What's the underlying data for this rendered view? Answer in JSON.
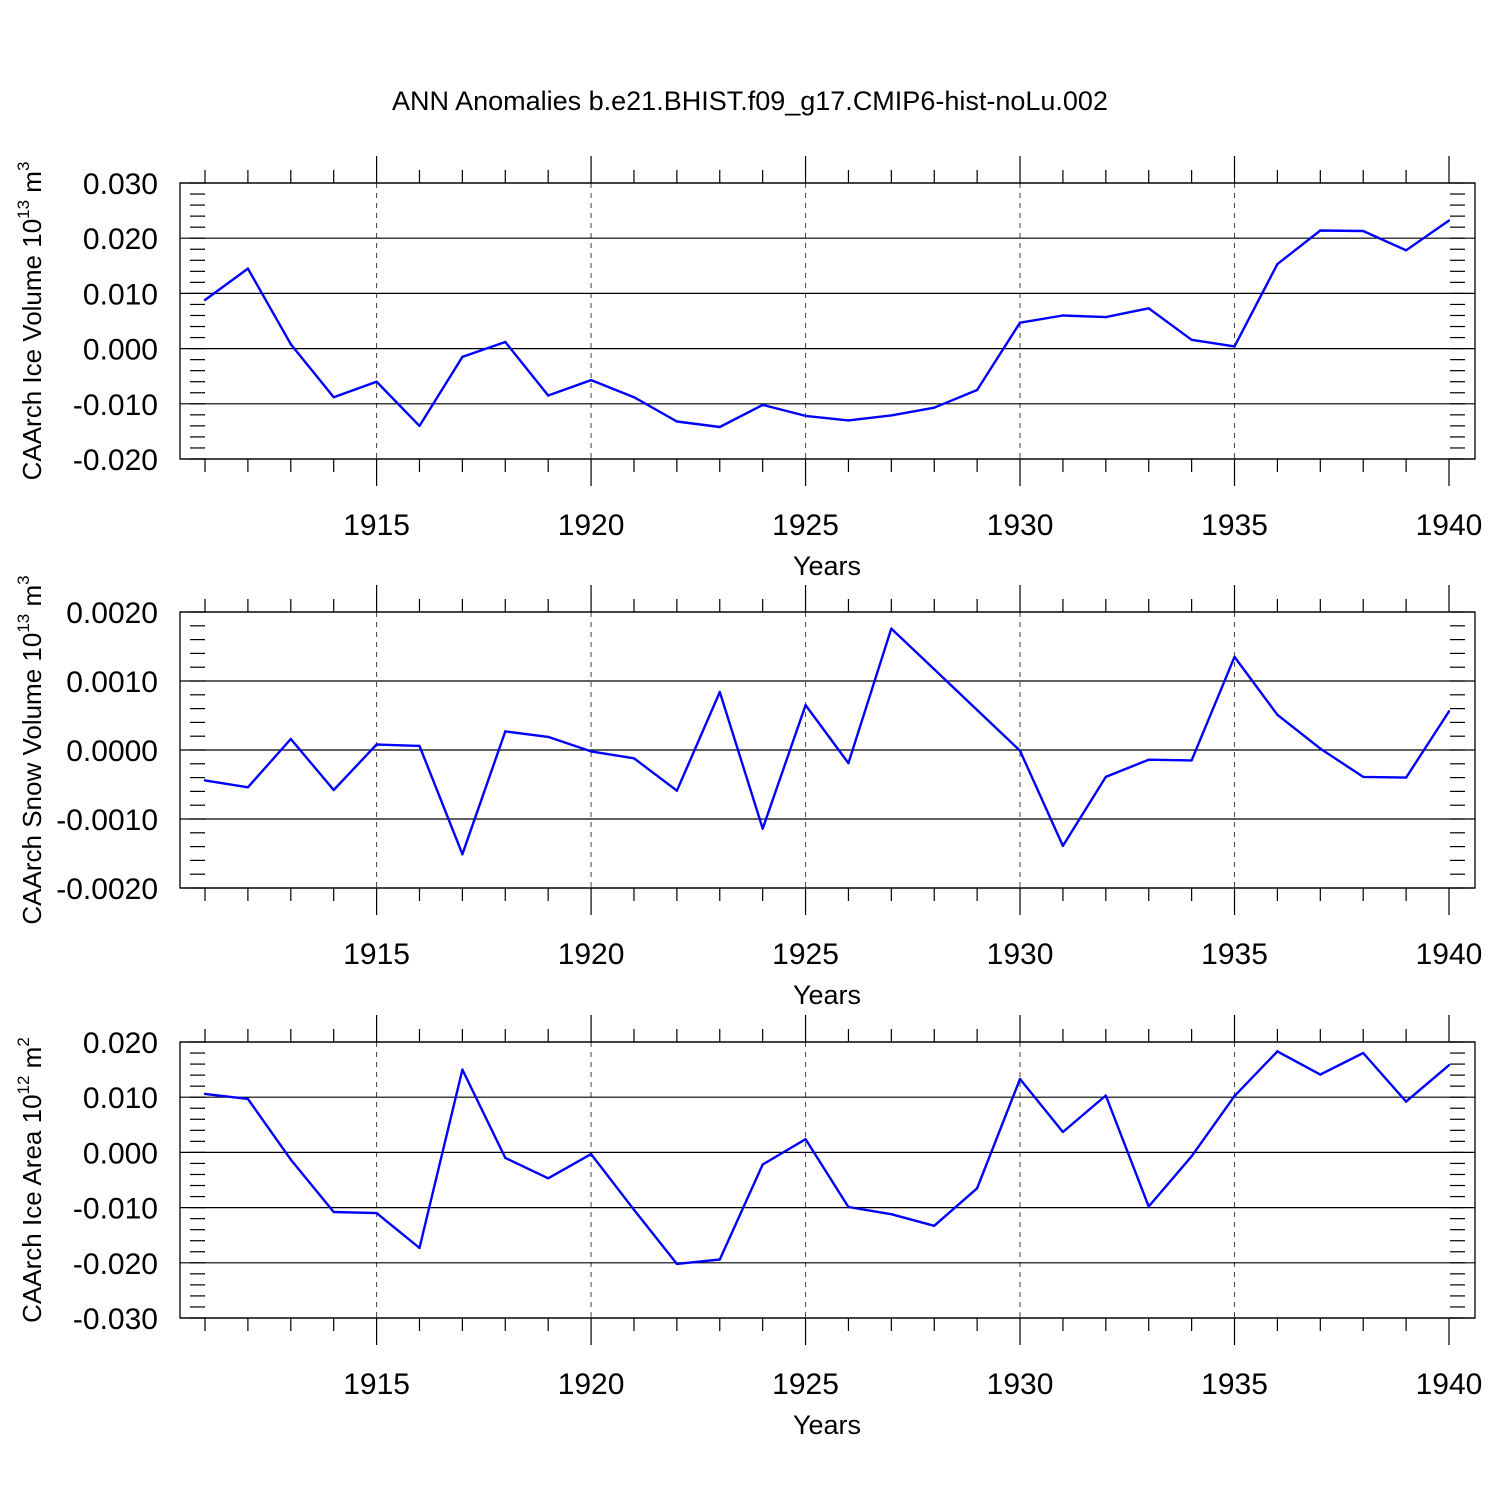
{
  "title": "ANN Anomalies b.e21.BHIST.f09_g17.CMIP6-hist-noLu.002",
  "colors": {
    "series": "#0000ff",
    "axis": "#000000",
    "grid": "#444444"
  },
  "chart_data": [
    {
      "type": "line",
      "title": "ANN Anomalies b.e21.BHIST.f09_g17.CMIP6-hist-noLu.002",
      "ylabel": "CAArch Ice Volume 10",
      "ylabel_exp": "13",
      "ylabel_unit": " m",
      "ylabel_unit_exp": "3",
      "xlabel": "Years",
      "xlim": [
        1911,
        1940
      ],
      "ylim": [
        -0.02,
        0.03
      ],
      "x_ticks": [
        "1915",
        "1920",
        "1925",
        "1930",
        "1935",
        "1940"
      ],
      "y_ticks": [
        "-0.020",
        "-0.010",
        "0.000",
        "0.010",
        "0.020",
        "0.030"
      ],
      "y_tick_values": [
        -0.02,
        -0.01,
        0.0,
        0.01,
        0.02,
        0.03
      ],
      "y_minor_step": 0.002,
      "grid": true,
      "x": [
        1911,
        1912,
        1913,
        1914,
        1915,
        1916,
        1917,
        1918,
        1919,
        1920,
        1921,
        1922,
        1923,
        1924,
        1925,
        1926,
        1927,
        1928,
        1929,
        1930,
        1931,
        1932,
        1933,
        1934,
        1935,
        1936,
        1937,
        1938,
        1939,
        1940
      ],
      "values": [
        0.0088,
        0.0145,
        0.0008,
        -0.0088,
        -0.006,
        -0.014,
        -0.0015,
        0.0012,
        -0.0085,
        -0.0057,
        -0.0088,
        -0.0132,
        -0.0142,
        -0.0102,
        -0.0122,
        -0.013,
        -0.0121,
        -0.0107,
        -0.0075,
        0.0047,
        0.006,
        0.0057,
        0.0073,
        0.0016,
        0.0004,
        0.0153,
        0.0214,
        0.0213,
        0.0178,
        0.0232
      ]
    },
    {
      "type": "line",
      "ylabel": "CAArch Snow Volume 10",
      "ylabel_exp": "13",
      "ylabel_unit": " m",
      "ylabel_unit_exp": "3",
      "xlabel": "Years",
      "xlim": [
        1911,
        1940
      ],
      "ylim": [
        -0.002,
        0.002
      ],
      "x_ticks": [
        "1915",
        "1920",
        "1925",
        "1930",
        "1935",
        "1940"
      ],
      "y_ticks": [
        "-0.0020",
        "-0.0010",
        "0.0000",
        "0.0010",
        "0.0020"
      ],
      "y_tick_values": [
        -0.002,
        -0.001,
        0.0,
        0.001,
        0.002
      ],
      "y_minor_step": 0.0002,
      "grid": true,
      "x": [
        1911,
        1912,
        1913,
        1914,
        1915,
        1916,
        1917,
        1918,
        1919,
        1920,
        1921,
        1922,
        1923,
        1924,
        1925,
        1926,
        1927,
        1928,
        1929,
        1930,
        1931,
        1932,
        1933,
        1934,
        1935,
        1936,
        1937,
        1938,
        1939,
        1940
      ],
      "values": [
        -0.00044,
        -0.00054,
        0.00016,
        -0.00058,
        8e-05,
        6e-05,
        -0.00151,
        0.00027,
        0.00019,
        -2e-05,
        -0.00012,
        -0.00059,
        0.00084,
        -0.00114,
        0.00065,
        -0.00019,
        0.00176,
        0.00117,
        0.00058,
        -1e-05,
        -0.00139,
        -0.00039,
        -0.00014,
        -0.00015,
        0.00135,
        0.00051,
        2e-05,
        -0.00039,
        -0.0004,
        0.00056
      ]
    },
    {
      "type": "line",
      "ylabel": "CAArch Ice Area 10",
      "ylabel_exp": "12",
      "ylabel_unit": " m",
      "ylabel_unit_exp": "2",
      "xlabel": "Years",
      "xlim": [
        1911,
        1940
      ],
      "ylim": [
        -0.03,
        0.02
      ],
      "x_ticks": [
        "1915",
        "1920",
        "1925",
        "1930",
        "1935",
        "1940"
      ],
      "y_ticks": [
        "-0.030",
        "-0.020",
        "-0.010",
        "0.000",
        "0.010",
        "0.020"
      ],
      "y_tick_values": [
        -0.03,
        -0.02,
        -0.01,
        0.0,
        0.01,
        0.02
      ],
      "y_minor_step": 0.002,
      "grid": true,
      "x": [
        1911,
        1912,
        1913,
        1914,
        1915,
        1916,
        1917,
        1918,
        1919,
        1920,
        1921,
        1922,
        1923,
        1924,
        1925,
        1926,
        1927,
        1928,
        1929,
        1930,
        1931,
        1932,
        1933,
        1934,
        1935,
        1936,
        1937,
        1938,
        1939,
        1940
      ],
      "values": [
        0.0106,
        0.0097,
        -0.0013,
        -0.0108,
        -0.011,
        -0.0173,
        0.015,
        -0.001,
        -0.0047,
        -0.0003,
        -0.0104,
        -0.0202,
        -0.0194,
        -0.0022,
        0.0024,
        -0.0099,
        -0.0112,
        -0.0133,
        -0.0065,
        0.0133,
        0.0037,
        0.0103,
        -0.0098,
        -0.0007,
        0.0102,
        0.0183,
        0.0141,
        0.018,
        0.0092,
        0.0158
      ]
    }
  ]
}
